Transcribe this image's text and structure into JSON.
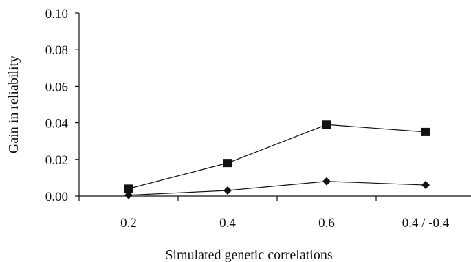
{
  "chart_data": {
    "type": "line",
    "title": "",
    "xlabel": "Simulated genetic correlations",
    "ylabel": "Gain in reliability",
    "categories": [
      "0.2",
      "0.4",
      "0.6",
      "0.4 / -0.4"
    ],
    "ylim": [
      0,
      0.1
    ],
    "yticks": [
      "0.00",
      "0.02",
      "0.04",
      "0.06",
      "0.08",
      "0.10"
    ],
    "grid": false,
    "legend": "none",
    "series": [
      {
        "marker": "square",
        "color": "#111111",
        "values": [
          0.004,
          0.018,
          0.039,
          0.035
        ]
      },
      {
        "marker": "diamond",
        "color": "#111111",
        "values": [
          0.0005,
          0.003,
          0.008,
          0.006
        ]
      }
    ]
  }
}
